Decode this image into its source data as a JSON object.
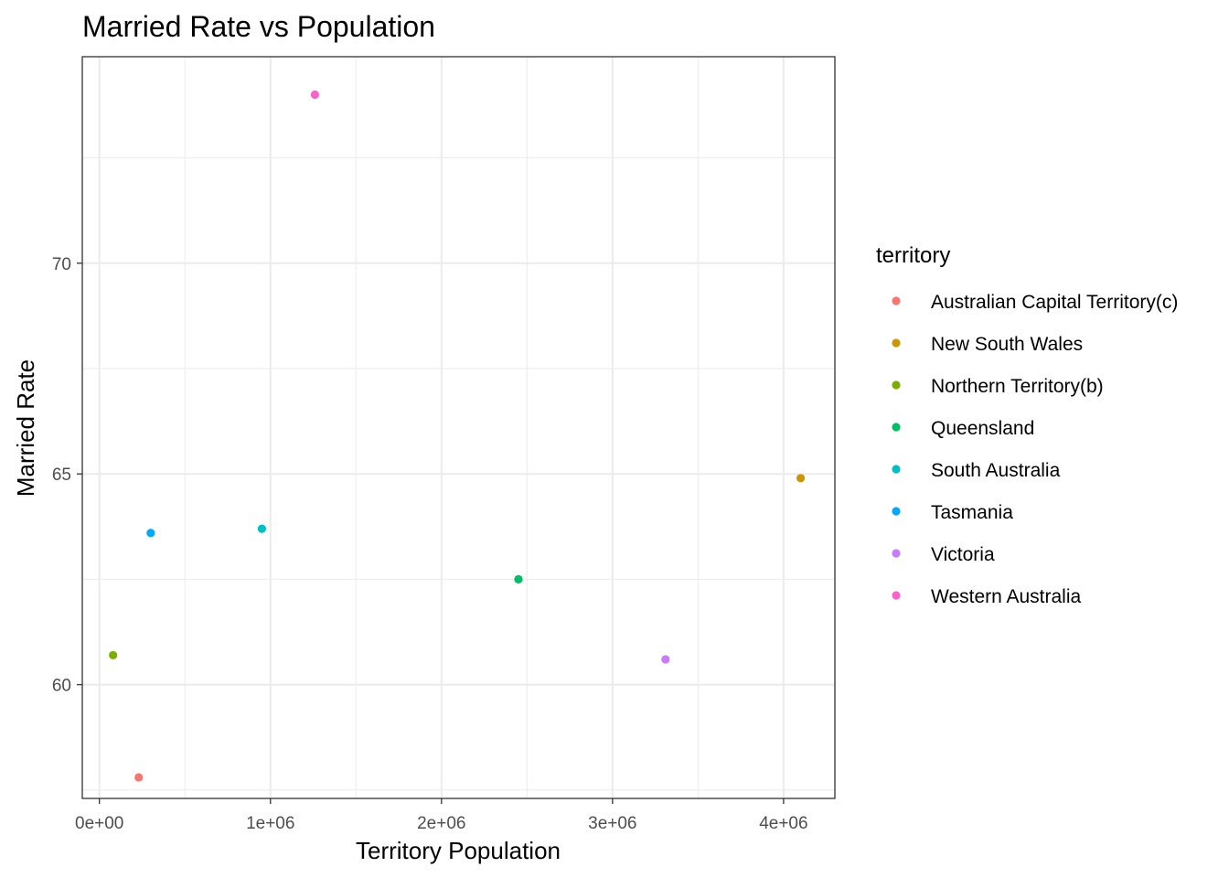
{
  "chart_data": {
    "type": "scatter",
    "title": "Married Rate vs Population",
    "xlabel": "Territory Population",
    "ylabel": "Married Rate",
    "xlim": [
      -100000,
      4300000
    ],
    "ylim": [
      57.3,
      74.9
    ],
    "x_ticks": [
      0,
      1000000,
      2000000,
      3000000,
      4000000
    ],
    "x_tick_labels": [
      "0e+00",
      "1e+06",
      "2e+06",
      "3e+06",
      "4e+06"
    ],
    "y_ticks": [
      60,
      65,
      70
    ],
    "y_tick_labels": [
      "60",
      "65",
      "70"
    ],
    "x_minor": [
      500000,
      1500000,
      2500000,
      3500000
    ],
    "y_minor": [
      57.5,
      62.5,
      67.5,
      72.5
    ],
    "grid": true,
    "legend_title": "territory",
    "legend_position": "right",
    "series": [
      {
        "name": "Australian Capital Territory(c)",
        "color": "#F8766D",
        "x": 230000,
        "y": 57.8
      },
      {
        "name": "New South Wales",
        "color": "#CD9600",
        "x": 4100000,
        "y": 64.9
      },
      {
        "name": "Northern Territory(b)",
        "color": "#7CAE00",
        "x": 80000,
        "y": 60.7
      },
      {
        "name": "Queensland",
        "color": "#00BE67",
        "x": 2450000,
        "y": 62.5
      },
      {
        "name": "South Australia",
        "color": "#00BFC4",
        "x": 950000,
        "y": 63.7
      },
      {
        "name": "Tasmania",
        "color": "#00A9FF",
        "x": 300000,
        "y": 63.6
      },
      {
        "name": "Victoria",
        "color": "#C77CFF",
        "x": 3310000,
        "y": 60.6
      },
      {
        "name": "Western Australia",
        "color": "#FF61CC",
        "x": 1260000,
        "y": 74.0
      }
    ]
  }
}
